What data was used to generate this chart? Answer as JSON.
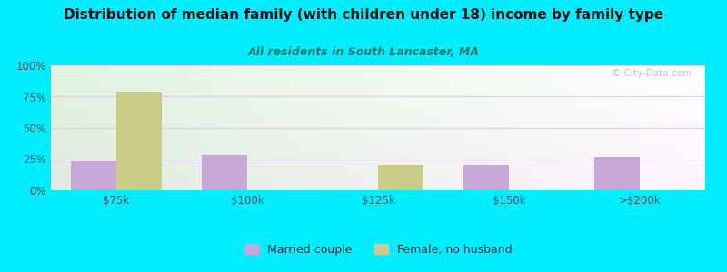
{
  "title": "Distribution of median family (with children under 18) income by family type",
  "subtitle": "All residents in South Lancaster, MA",
  "categories": [
    "$75k",
    "$100k",
    "$125k",
    "$150k",
    ">$200k"
  ],
  "married_couple": [
    23,
    28,
    0,
    20,
    27
  ],
  "female_no_husband": [
    78,
    0,
    20,
    0,
    0
  ],
  "married_color": "#c8a8d8",
  "female_color": "#c8cc88",
  "bg_outer": "#00eeff",
  "title_color": "#111111",
  "subtitle_color": "#2a7a6a",
  "yticks": [
    0,
    25,
    50,
    75,
    100
  ],
  "ylabels": [
    "0%",
    "25%",
    "50%",
    "75%",
    "100%"
  ],
  "bar_width": 0.35,
  "watermark": "© City-Data.com"
}
